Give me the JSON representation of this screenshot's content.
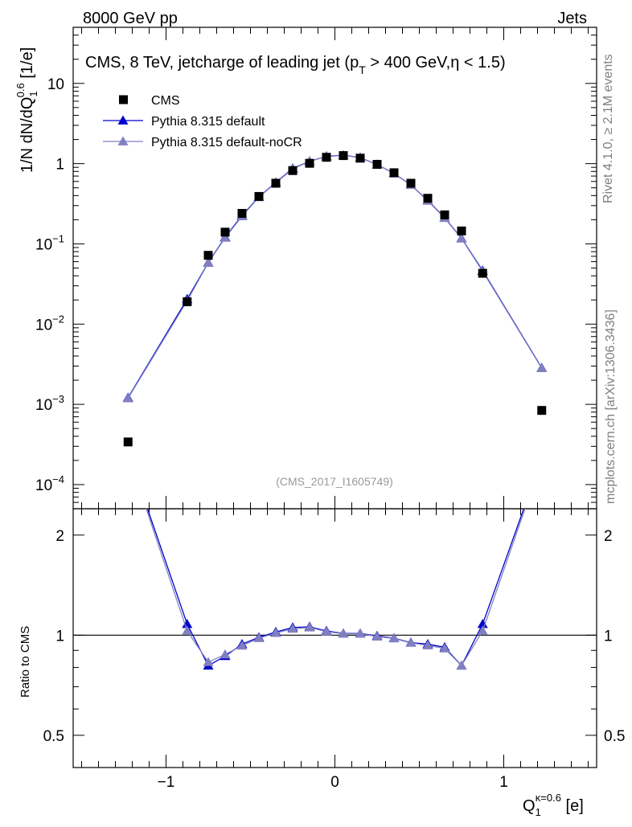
{
  "header": {
    "left": "8000 GeV pp",
    "right": "Jets"
  },
  "side_labels": {
    "rivet": "Rivet 4.1.0, ≥ 2.1M events",
    "mcplots": "mcplots.cern.ch [arXiv:1306.3436]"
  },
  "chart_data": {
    "type": "scatter",
    "title": "CMS, 8 TeV, jetcharge of leading jet (p_T > 400 GeV, η < 1.5)",
    "title_parts": {
      "pre": "CMS, 8 TeV, jetcharge of leading jet (p",
      "sub": "T",
      "post": " > 400 GeV,η < 1.5)"
    },
    "watermark": "(CMS_2017_I1605749)",
    "xlabel": {
      "base": "Q",
      "sub": "1",
      "sup": "κ=0.6",
      "unit": " [e]"
    },
    "ylabel": {
      "pre": "1/N dN/dQ",
      "sub": "1",
      "sup": "0.6",
      "post": " [1/e]"
    },
    "ratio_ylabel": "Ratio to CMS",
    "xlim": [
      -1.55,
      1.55
    ],
    "ylim": [
      5e-05,
      50
    ],
    "ratio_ylim": [
      0.4,
      2.4
    ],
    "yscale": "log",
    "x_ticks": [
      -1,
      0,
      1
    ],
    "x_tick_labels": [
      "−1",
      "0",
      "1"
    ],
    "y_ticks": [
      {
        "value": 0.0001,
        "base": "10",
        "exp": "−4"
      },
      {
        "value": 0.001,
        "base": "10",
        "exp": "−3"
      },
      {
        "value": 0.01,
        "base": "10",
        "exp": "−2"
      },
      {
        "value": 0.1,
        "base": "10",
        "exp": "−1"
      },
      {
        "value": 1,
        "base": "1",
        "exp": ""
      },
      {
        "value": 10,
        "base": "10",
        "exp": ""
      }
    ],
    "ratio_ticks": [
      0.5,
      1,
      2
    ],
    "ratio_tick_labels": [
      "0.5",
      "1",
      "2"
    ],
    "legend": {
      "position": "top-left",
      "entries": [
        "CMS",
        "Pythia 8.315 default",
        "Pythia 8.315 default-noCR"
      ]
    },
    "x": [
      -1.225,
      -0.875,
      -0.75,
      -0.65,
      -0.55,
      -0.45,
      -0.35,
      -0.25,
      -0.15,
      -0.05,
      0.05,
      0.15,
      0.25,
      0.35,
      0.45,
      0.55,
      0.65,
      0.75,
      0.875,
      1.225
    ],
    "series": [
      {
        "name": "CMS",
        "marker": "square",
        "color": "#000000",
        "values": [
          0.00034,
          0.019,
          0.072,
          0.14,
          0.24,
          0.39,
          0.57,
          0.82,
          1.01,
          1.2,
          1.26,
          1.17,
          0.98,
          0.77,
          0.57,
          0.37,
          0.23,
          0.145,
          0.043,
          0.00084
        ]
      },
      {
        "name": "Pythia 8.315 default",
        "marker": "triangle",
        "color": "#0000cc",
        "values": [
          0.00121,
          0.0205,
          0.0585,
          0.121,
          0.226,
          0.385,
          0.583,
          0.87,
          1.07,
          1.235,
          1.275,
          1.19,
          0.975,
          0.755,
          0.542,
          0.348,
          0.212,
          0.1175,
          0.0465,
          0.00285
        ],
        "ratio": [
          3.55,
          1.08,
          0.81,
          0.865,
          0.94,
          0.985,
          1.022,
          1.055,
          1.06,
          1.03,
          1.012,
          1.012,
          0.995,
          0.98,
          0.95,
          0.94,
          0.92,
          0.81,
          1.08,
          3.4
        ]
      },
      {
        "name": "Pythia 8.315 default-noCR",
        "marker": "triangle",
        "color": "#8080c0",
        "values": [
          0.00119,
          0.0195,
          0.058,
          0.119,
          0.221,
          0.382,
          0.578,
          0.855,
          1.07,
          1.225,
          1.27,
          1.185,
          0.975,
          0.755,
          0.542,
          0.344,
          0.21,
          0.1165,
          0.0455,
          0.00282
        ],
        "ratio": [
          3.5,
          1.03,
          0.83,
          0.875,
          0.93,
          0.98,
          1.015,
          1.045,
          1.055,
          1.025,
          1.01,
          1.01,
          0.99,
          0.978,
          0.948,
          0.932,
          0.912,
          0.81,
          1.03,
          3.35
        ]
      }
    ]
  }
}
